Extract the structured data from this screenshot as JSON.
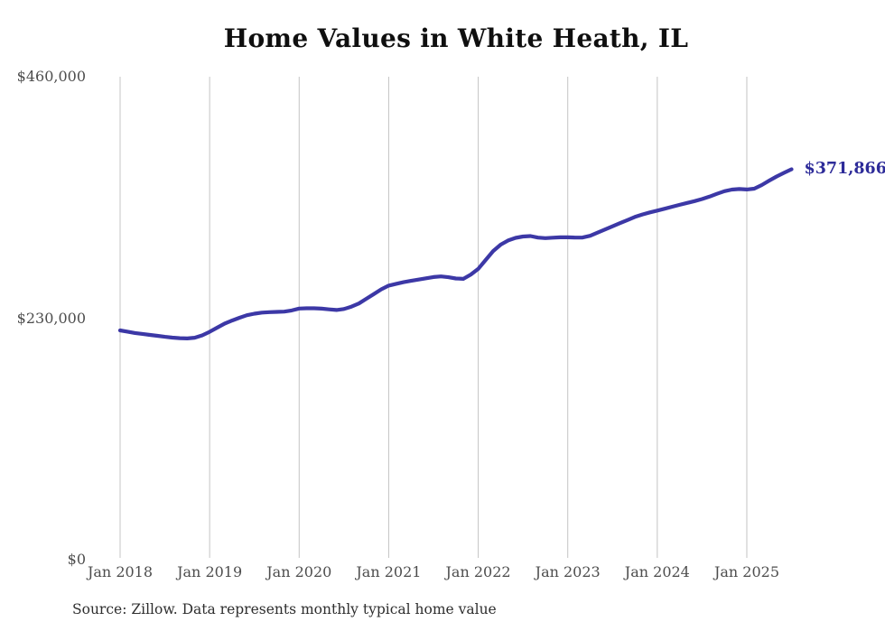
{
  "page": {
    "source_note": "Source: Zillow. Data represents monthly typical home value"
  },
  "chart_data": {
    "type": "line",
    "title": "Home Values in White Heath, IL",
    "series": [
      {
        "name": "Monthly typical home value (USD)",
        "start_month": "2018-01",
        "end_month": "2025-07",
        "monthly_values": [
          218400,
          217200,
          215900,
          215000,
          214100,
          213200,
          212300,
          211500,
          211000,
          210700,
          211400,
          213700,
          217000,
          221000,
          224800,
          227800,
          230400,
          232800,
          234300,
          235300,
          235800,
          236000,
          236300,
          237400,
          239200,
          239500,
          239500,
          239100,
          238400,
          237800,
          238800,
          241000,
          244000,
          248500,
          253000,
          257500,
          261000,
          262800,
          264300,
          265600,
          266800,
          268000,
          269200,
          269800,
          269000,
          267800,
          267500,
          271500,
          277000,
          285500,
          294000,
          300000,
          304000,
          306500,
          307800,
          308200,
          306800,
          306300,
          306700,
          307000,
          307000,
          306800,
          306900,
          308500,
          311500,
          314500,
          317500,
          320500,
          323500,
          326500,
          328800,
          330800,
          332500,
          334300,
          336200,
          338000,
          339800,
          341500,
          343500,
          345800,
          348500,
          351000,
          352500,
          353000,
          352600,
          353400,
          356800,
          361000,
          365000,
          368500,
          371866
        ]
      }
    ],
    "end_label": "$371,866",
    "end_value": 371866,
    "x_tick_labels": [
      "Jan 2018",
      "Jan 2019",
      "Jan 2020",
      "Jan 2021",
      "Jan 2022",
      "Jan 2023",
      "Jan 2024",
      "Jan 2025"
    ],
    "y_ticks": [
      460000,
      230000,
      0
    ],
    "y_tick_labels": [
      "$460,000",
      "$230,000",
      "$0"
    ],
    "ylim": [
      0,
      460000
    ],
    "grid": "vertical",
    "legend": "none",
    "line_color": "#3c38a6",
    "end_label_color": "#2d2b99",
    "grid_color": "#c4c4c4",
    "tick_text_color": "#4d4d4d",
    "title_color": "#0f0f0f",
    "source_text_color": "#2e2e2e",
    "background_color": "#ffffff"
  }
}
